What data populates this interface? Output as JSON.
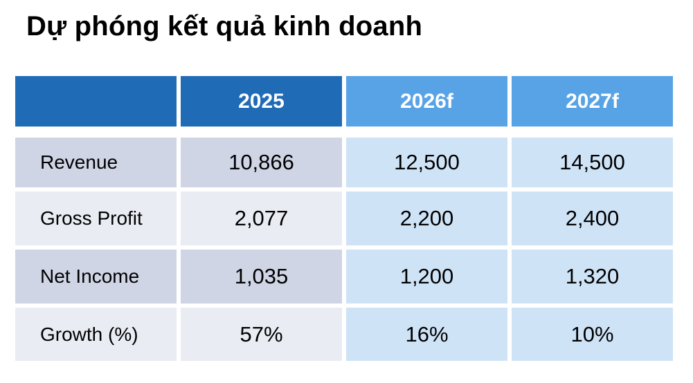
{
  "title": "Dự phóng kết quả kinh doanh",
  "table": {
    "headers": [
      "",
      "2025",
      "2026f",
      "2027f"
    ],
    "rows": [
      {
        "label": "Revenue",
        "values": [
          "10,866",
          "12,500",
          "14,500"
        ]
      },
      {
        "label": "Gross Profit",
        "values": [
          "2,077",
          "2,200",
          "2,400"
        ]
      },
      {
        "label": "Net Income",
        "values": [
          "1,035",
          "1,200",
          "1,320"
        ]
      },
      {
        "label": "Growth (%)",
        "values": [
          "57%",
          "16%",
          "10%"
        ]
      }
    ]
  },
  "colors": {
    "header_actual": "#1f6bb5",
    "header_forecast": "#58a3e6",
    "row_shade_dark": "#cfd5e5",
    "row_shade_light": "#e9ecf3",
    "forecast_cells": "#cfe3f7"
  }
}
